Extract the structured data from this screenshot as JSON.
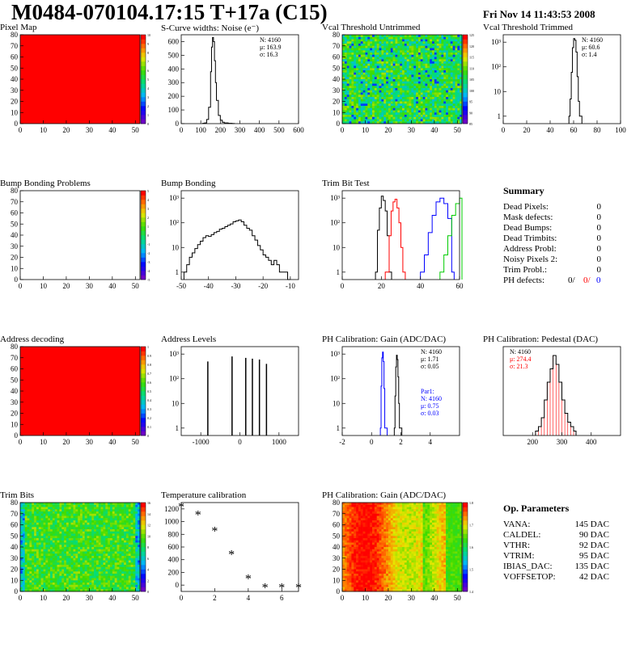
{
  "header": {
    "title": "M0484-070104.17:15 T+17a (C15)",
    "date": "Fri Nov 14 11:43:53 2008"
  },
  "colors": {
    "hist": "#000000",
    "red": "#ff0000",
    "blue": "#0000ff",
    "green": "#00cc00"
  },
  "chart_data": [
    {
      "id": "pixel-map",
      "type": "heatmap",
      "title": "Pixel Map",
      "xlim": [
        0,
        52
      ],
      "ylim": [
        0,
        80
      ],
      "xticks": [
        "0",
        "10",
        "20",
        "30",
        "40",
        "50"
      ],
      "yticks": [
        "0",
        "10",
        "20",
        "30",
        "40",
        "50",
        "60",
        "70",
        "80"
      ],
      "fill": "uniform-red",
      "zlabels": [
        "0",
        "1",
        "2",
        "3",
        "4",
        "5",
        "6",
        "7",
        "8",
        "9",
        "10"
      ]
    },
    {
      "id": "scurve",
      "type": "bar",
      "title": "S-Curve widths: Noise (e⁻)",
      "xlim": [
        0,
        600
      ],
      "ylim": [
        0,
        650
      ],
      "xticks": [
        "0",
        "100",
        "200",
        "300",
        "400",
        "500",
        "600"
      ],
      "yticks": [
        "0",
        "100",
        "200",
        "300",
        "400",
        "500",
        "600"
      ],
      "stats": [
        "N: 4160",
        "μ: 163.9",
        "σ: 16.3"
      ],
      "x": [
        110,
        120,
        130,
        140,
        150,
        155,
        160,
        165,
        170,
        175,
        180,
        190,
        200,
        210,
        220,
        240,
        260
      ],
      "values": [
        2,
        5,
        30,
        120,
        380,
        560,
        630,
        600,
        460,
        300,
        170,
        60,
        25,
        10,
        5,
        2,
        1
      ]
    },
    {
      "id": "vcal-untrimmed",
      "type": "heatmap",
      "title": "Vcal Threshold Untrimmed",
      "xlim": [
        0,
        52
      ],
      "ylim": [
        0,
        80
      ],
      "xticks": [
        "0",
        "10",
        "20",
        "30",
        "40",
        "50"
      ],
      "yticks": [
        "0",
        "10",
        "20",
        "30",
        "40",
        "50",
        "60",
        "70",
        "80"
      ],
      "fill": "random-mid",
      "zlabels": [
        "85",
        "90",
        "95",
        "100",
        "105",
        "110",
        "115",
        "120",
        "125"
      ]
    },
    {
      "id": "vcal-trimmed",
      "type": "bar",
      "title": "Vcal Threshold Trimmed",
      "log": true,
      "xlim": [
        0,
        100
      ],
      "ylim": [
        0.5,
        2000
      ],
      "xticks": [
        "0",
        "20",
        "40",
        "60",
        "80",
        "100"
      ],
      "yticks": [
        "1",
        "10",
        "10²",
        "10³"
      ],
      "stats": [
        "N: 4160",
        "μ: 60.6",
        "σ:  1.4"
      ],
      "x": [
        56,
        57,
        58,
        59,
        60,
        61,
        62,
        63,
        64,
        65
      ],
      "values": [
        1,
        5,
        60,
        600,
        1400,
        1200,
        400,
        40,
        4,
        1
      ]
    },
    {
      "id": "bump-problems",
      "type": "heatmap",
      "title": "Bump Bonding Problems",
      "xlim": [
        0,
        52
      ],
      "ylim": [
        0,
        80
      ],
      "xticks": [
        "0",
        "10",
        "20",
        "30",
        "40",
        "50"
      ],
      "yticks": [
        "0",
        "10",
        "20",
        "30",
        "40",
        "50",
        "60",
        "70",
        "80"
      ],
      "fill": "empty",
      "zlabels": [
        "-5",
        "-4",
        "-3",
        "-2",
        "-1",
        "0",
        "1",
        "2",
        "3",
        "4",
        "5"
      ]
    },
    {
      "id": "bump-bonding",
      "type": "bar",
      "title": "Bump Bonding",
      "log": true,
      "xlim": [
        -50,
        -7
      ],
      "ylim": [
        0.5,
        2000
      ],
      "xticks": [
        "-50",
        "-40",
        "-30",
        "-20",
        "-10"
      ],
      "yticks": [
        "1",
        "10",
        "10²",
        "10³"
      ],
      "x": [
        -49,
        -48,
        -47,
        -46,
        -45,
        -44,
        -43,
        -42,
        -41,
        -40,
        -39,
        -38,
        -37,
        -36,
        -35,
        -34,
        -33,
        -32,
        -31,
        -30,
        -29,
        -28,
        -27,
        -26,
        -25,
        -24,
        -23,
        -22,
        -21,
        -20,
        -19,
        -18,
        -17,
        -16,
        -15,
        -14,
        -13,
        -12,
        -11
      ],
      "values": [
        1,
        2,
        4,
        6,
        9,
        13,
        18,
        25,
        30,
        28,
        33,
        40,
        45,
        55,
        60,
        70,
        80,
        90,
        110,
        120,
        130,
        110,
        80,
        60,
        50,
        30,
        20,
        12,
        8,
        5,
        4,
        3,
        2,
        3,
        2,
        1,
        1,
        1,
        0
      ]
    },
    {
      "id": "trim-bit-test",
      "type": "line",
      "title": "Trim Bit Test",
      "log": true,
      "xlim": [
        0,
        60
      ],
      "ylim": [
        0.5,
        2000
      ],
      "xticks": [
        "0",
        "20",
        "40",
        "60"
      ],
      "yticks": [
        "1",
        "10",
        "10²",
        "10³"
      ],
      "series": [
        {
          "color": "#000000",
          "x": [
            17,
            18,
            19,
            20,
            21,
            22,
            23,
            24
          ],
          "values": [
            1,
            50,
            400,
            1200,
            800,
            300,
            30,
            1
          ]
        },
        {
          "color": "#ff0000",
          "x": [
            22,
            24,
            25,
            26,
            27,
            28,
            29,
            30,
            31
          ],
          "values": [
            1,
            30,
            300,
            700,
            900,
            400,
            100,
            10,
            1
          ]
        },
        {
          "color": "#0000ff",
          "x": [
            40,
            42,
            44,
            46,
            48,
            50,
            52,
            54,
            56
          ],
          "values": [
            1,
            5,
            40,
            200,
            700,
            1000,
            600,
            150,
            1
          ]
        },
        {
          "color": "#00cc00",
          "x": [
            50,
            52,
            54,
            56,
            58,
            60
          ],
          "values": [
            1,
            5,
            30,
            200,
            600,
            1000
          ]
        }
      ]
    },
    {
      "id": "address-decoding",
      "type": "heatmap",
      "title": "Address decoding",
      "xlim": [
        0,
        52
      ],
      "ylim": [
        0,
        80
      ],
      "xticks": [
        "0",
        "10",
        "20",
        "30",
        "40",
        "50"
      ],
      "yticks": [
        "0",
        "10",
        "20",
        "30",
        "40",
        "50",
        "60",
        "70",
        "80"
      ],
      "fill": "uniform-red",
      "zlabels": [
        "0",
        "0.1",
        "0.2",
        "0.3",
        "0.4",
        "0.5",
        "0.6",
        "0.7",
        "0.8",
        "0.9",
        "1"
      ]
    },
    {
      "id": "address-levels",
      "type": "bar",
      "title": "Address Levels",
      "log": true,
      "xlim": [
        -1500,
        1500
      ],
      "ylim": [
        0.5,
        2000
      ],
      "xticks": [
        "-1000",
        "0",
        "1000"
      ],
      "yticks": [
        "1",
        "10",
        "10²",
        "10³"
      ],
      "x": [
        -820,
        -200,
        150,
        320,
        500,
        680
      ],
      "values": [
        500,
        800,
        700,
        650,
        600,
        400
      ]
    },
    {
      "id": "ph-gain",
      "type": "line",
      "title": "PH Calibration: Gain (ADC/DAC)",
      "log": true,
      "xlim": [
        -2,
        6
      ],
      "ylim": [
        0.5,
        2000
      ],
      "xticks": [
        "-2",
        "0",
        "2",
        "4"
      ],
      "yticks": [
        "1",
        "10",
        "10²",
        "10³"
      ],
      "stats": [
        "N: 4160",
        "μ: 1.71",
        "σ: 0.05"
      ],
      "stats2": [
        "Par1:",
        "N: 4160",
        "μ: 0.75",
        "σ: 0.03"
      ],
      "series": [
        {
          "color": "#000000",
          "x": [
            1.55,
            1.6,
            1.65,
            1.7,
            1.75,
            1.8,
            1.85,
            1.9
          ],
          "values": [
            1,
            20,
            300,
            900,
            600,
            120,
            10,
            1
          ]
        },
        {
          "color": "#0000ff",
          "x": [
            0.6,
            0.65,
            0.7,
            0.75,
            0.8,
            0.85,
            0.9
          ],
          "values": [
            1,
            50,
            700,
            1200,
            500,
            40,
            1
          ]
        }
      ]
    },
    {
      "id": "ph-pedestal",
      "type": "bar",
      "title": "PH Calibration: Pedestal (DAC)",
      "xlim": [
        100,
        500
      ],
      "ylim": [
        0,
        20
      ],
      "xticks": [
        "200",
        "300",
        "400"
      ],
      "yticks": [],
      "stats": [
        "N: 4160",
        "μ: 274.4",
        "σ: 21.3"
      ],
      "x": [
        210,
        220,
        230,
        240,
        250,
        260,
        270,
        280,
        290,
        300,
        310,
        320,
        330,
        340
      ],
      "values": [
        1,
        2,
        4,
        8,
        12,
        15,
        18,
        16,
        12,
        8,
        5,
        3,
        2,
        1
      ]
    },
    {
      "id": "summary",
      "type": "table",
      "title": "Summary",
      "rows": [
        {
          "label": "Dead Pixels:",
          "value": "0"
        },
        {
          "label": "Mask defects:",
          "value": "0"
        },
        {
          "label": "Dead Bumps:",
          "value": "0"
        },
        {
          "label": "Dead Trimbits:",
          "value": "0"
        },
        {
          "label": "Address Probl:",
          "value": "0"
        },
        {
          "label": "Noisy Pixels 2:",
          "value": "0"
        },
        {
          "label": "Trim Probl.:",
          "value": "0"
        }
      ],
      "ph_defects": {
        "label": "PH defects:",
        "v1": "0/",
        "v2": "0/",
        "v3": "0"
      }
    },
    {
      "id": "trim-bits",
      "type": "heatmap",
      "title": "Trim Bits",
      "xlim": [
        0,
        52
      ],
      "ylim": [
        0,
        80
      ],
      "xticks": [
        "0",
        "10",
        "20",
        "30",
        "40",
        "50"
      ],
      "yticks": [
        "0",
        "10",
        "20",
        "30",
        "40",
        "50",
        "60",
        "70",
        "80"
      ],
      "fill": "random-green",
      "zlabels": [
        "0",
        "2",
        "4",
        "6",
        "8",
        "10",
        "12",
        "14",
        "16"
      ]
    },
    {
      "id": "temp-calib",
      "type": "scatter",
      "title": "Temperature calibration",
      "xlim": [
        0,
        7
      ],
      "ylim": [
        -100,
        1300
      ],
      "xticks": [
        "0",
        "2",
        "4",
        "6"
      ],
      "yticks": [
        "0",
        "200",
        "400",
        "600",
        "800",
        "1000",
        "1200"
      ],
      "x": [
        0,
        1,
        2,
        3,
        4,
        5,
        6,
        7
      ],
      "values": [
        1230,
        1100,
        850,
        480,
        100,
        -40,
        -40,
        -40
      ]
    },
    {
      "id": "ph-gain-map",
      "type": "heatmap",
      "title": "PH Calibration: Gain (ADC/DAC)",
      "xlim": [
        0,
        52
      ],
      "ylim": [
        0,
        80
      ],
      "xticks": [
        "0",
        "10",
        "20",
        "30",
        "40",
        "50"
      ],
      "yticks": [
        "0",
        "10",
        "20",
        "30",
        "40",
        "50",
        "60",
        "70",
        "80"
      ],
      "fill": "columns-warm",
      "zlabels": [
        "1.4",
        "1.5",
        "1.6",
        "1.7",
        "1.8"
      ]
    },
    {
      "id": "op-params",
      "type": "table",
      "title": "Op. Parameters",
      "rows": [
        {
          "label": "VANA:",
          "value": "145 DAC"
        },
        {
          "label": "CALDEL:",
          "value": "90 DAC"
        },
        {
          "label": "VTHR:",
          "value": "92 DAC"
        },
        {
          "label": "VTRIM:",
          "value": "95 DAC"
        },
        {
          "label": "IBIAS_DAC:",
          "value": "135 DAC"
        },
        {
          "label": "VOFFSETOP:",
          "value": "42 DAC"
        }
      ]
    }
  ]
}
